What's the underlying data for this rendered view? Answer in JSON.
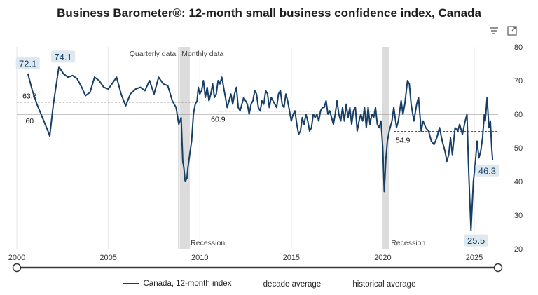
{
  "toolbar": {
    "filter_icon": "filter-icon",
    "expand_icon": "expand-icon"
  },
  "colors": {
    "series": "#173f66",
    "grid": "#e6e6e6",
    "recession": "#dcdcdc",
    "callout_bg": "#dde8ef"
  },
  "chart_data": {
    "type": "line",
    "title": "Business Barometer®: 12-month small business confidence index, Canada",
    "xlabel": "",
    "ylabel": "",
    "xlim": [
      2000,
      2026.3
    ],
    "ylim": [
      20,
      80
    ],
    "x_ticks": [
      "2000",
      "2005",
      "2010",
      "2015",
      "2020",
      "2025"
    ],
    "y_ticks": [
      "20",
      "30",
      "40",
      "50",
      "60",
      "70",
      "80"
    ],
    "grid": true,
    "legend_position": "bottom",
    "annotations": {
      "quarterly": "Quarterly data",
      "monthly": "Monthly data",
      "recession": "Recession"
    },
    "recessions": [
      [
        2008.9,
        2009.45
      ],
      [
        2019.95,
        2020.35
      ]
    ],
    "historical_average": {
      "value": 60,
      "label": "60"
    },
    "decade_averages": [
      {
        "label": "63.6",
        "value": 63.6,
        "from": 2000,
        "to": 2010
      },
      {
        "label": "60.9",
        "value": 60.9,
        "from": 2011,
        "to": 2020
      },
      {
        "label": "54.9",
        "value": 54.9,
        "from": 2020.6,
        "to": 2026.3
      }
    ],
    "callouts": [
      {
        "label": "72.1",
        "x": 2000.6,
        "y": 72.1
      },
      {
        "label": "74.1",
        "x": 2002.3,
        "y": 74.1
      },
      {
        "label": "46.3",
        "x": 2026.2,
        "y": 46.3
      },
      {
        "label": "25.5",
        "x": 2025.1,
        "y": 25.5
      }
    ],
    "legend": [
      "Canada, 12-month index",
      "decade average",
      "historical average"
    ],
    "series": [
      {
        "name": "Canada, 12-month index",
        "points": [
          [
            2000.6,
            72.1
          ],
          [
            2000.85,
            67
          ],
          [
            2001.1,
            63
          ],
          [
            2001.4,
            59
          ],
          [
            2001.7,
            55
          ],
          [
            2001.8,
            53.5
          ],
          [
            2002.0,
            63
          ],
          [
            2002.3,
            74.1
          ],
          [
            2002.55,
            72
          ],
          [
            2002.8,
            71
          ],
          [
            2003.05,
            71.5
          ],
          [
            2003.3,
            70.5
          ],
          [
            2003.55,
            68
          ],
          [
            2003.75,
            65.5
          ],
          [
            2004.0,
            66.5
          ],
          [
            2004.25,
            71
          ],
          [
            2004.5,
            70
          ],
          [
            2004.75,
            68
          ],
          [
            2005.0,
            67.5
          ],
          [
            2005.2,
            69
          ],
          [
            2005.45,
            71
          ],
          [
            2005.7,
            66
          ],
          [
            2005.95,
            62.5
          ],
          [
            2006.2,
            66
          ],
          [
            2006.5,
            67.5
          ],
          [
            2006.75,
            68
          ],
          [
            2007.0,
            67
          ],
          [
            2007.25,
            70
          ],
          [
            2007.5,
            66
          ],
          [
            2007.75,
            71
          ],
          [
            2008.0,
            69
          ],
          [
            2008.25,
            68.5
          ],
          [
            2008.5,
            64
          ],
          [
            2008.7,
            62
          ],
          [
            2008.85,
            57
          ],
          [
            2008.98,
            59
          ],
          [
            2009.07,
            46
          ],
          [
            2009.13,
            44
          ],
          [
            2009.2,
            40
          ],
          [
            2009.3,
            41
          ],
          [
            2009.35,
            44
          ],
          [
            2009.45,
            48
          ],
          [
            2009.55,
            52
          ],
          [
            2009.65,
            60
          ],
          [
            2009.75,
            63
          ],
          [
            2009.85,
            64
          ],
          [
            2009.92,
            68
          ],
          [
            2010.0,
            66
          ],
          [
            2010.1,
            67
          ],
          [
            2010.2,
            70
          ],
          [
            2010.3,
            65
          ],
          [
            2010.4,
            68
          ],
          [
            2010.5,
            64
          ],
          [
            2010.6,
            66
          ],
          [
            2010.7,
            69
          ],
          [
            2010.8,
            65
          ],
          [
            2010.9,
            66
          ],
          [
            2011.0,
            70
          ],
          [
            2011.1,
            69
          ],
          [
            2011.2,
            71
          ],
          [
            2011.3,
            68
          ],
          [
            2011.4,
            65
          ],
          [
            2011.5,
            62
          ],
          [
            2011.6,
            64
          ],
          [
            2011.7,
            66
          ],
          [
            2011.8,
            63
          ],
          [
            2011.9,
            66
          ],
          [
            2012.0,
            68
          ],
          [
            2012.1,
            62
          ],
          [
            2012.2,
            61
          ],
          [
            2012.3,
            63
          ],
          [
            2012.4,
            65
          ],
          [
            2012.5,
            64
          ],
          [
            2012.6,
            63
          ],
          [
            2012.7,
            60
          ],
          [
            2012.8,
            63
          ],
          [
            2012.9,
            64
          ],
          [
            2013.0,
            67
          ],
          [
            2013.1,
            66
          ],
          [
            2013.2,
            62
          ],
          [
            2013.3,
            61
          ],
          [
            2013.4,
            64
          ],
          [
            2013.5,
            63
          ],
          [
            2013.6,
            67
          ],
          [
            2013.7,
            66
          ],
          [
            2013.8,
            62
          ],
          [
            2013.9,
            65
          ],
          [
            2014.0,
            64
          ],
          [
            2014.1,
            63
          ],
          [
            2014.2,
            62
          ],
          [
            2014.3,
            66
          ],
          [
            2014.4,
            67
          ],
          [
            2014.5,
            63
          ],
          [
            2014.6,
            62
          ],
          [
            2014.7,
            66
          ],
          [
            2014.8,
            64
          ],
          [
            2014.9,
            61
          ],
          [
            2015.0,
            58
          ],
          [
            2015.1,
            60
          ],
          [
            2015.2,
            61
          ],
          [
            2015.3,
            57
          ],
          [
            2015.4,
            54
          ],
          [
            2015.5,
            55
          ],
          [
            2015.6,
            59
          ],
          [
            2015.7,
            57
          ],
          [
            2015.8,
            60
          ],
          [
            2015.9,
            58
          ],
          [
            2016.0,
            55
          ],
          [
            2016.1,
            56
          ],
          [
            2016.2,
            60
          ],
          [
            2016.3,
            59
          ],
          [
            2016.4,
            60
          ],
          [
            2016.5,
            58
          ],
          [
            2016.6,
            61
          ],
          [
            2016.7,
            62
          ],
          [
            2016.8,
            62
          ],
          [
            2016.9,
            64
          ],
          [
            2017.0,
            60
          ],
          [
            2017.1,
            61
          ],
          [
            2017.2,
            59
          ],
          [
            2017.3,
            57
          ],
          [
            2017.4,
            60
          ],
          [
            2017.5,
            64
          ],
          [
            2017.6,
            60
          ],
          [
            2017.7,
            58
          ],
          [
            2017.8,
            62
          ],
          [
            2017.9,
            58
          ],
          [
            2018.0,
            63
          ],
          [
            2018.1,
            59
          ],
          [
            2018.2,
            62
          ],
          [
            2018.3,
            57
          ],
          [
            2018.4,
            61
          ],
          [
            2018.5,
            62
          ],
          [
            2018.6,
            55
          ],
          [
            2018.7,
            58
          ],
          [
            2018.8,
            60
          ],
          [
            2018.9,
            58
          ],
          [
            2019.0,
            62
          ],
          [
            2019.1,
            56
          ],
          [
            2019.2,
            62
          ],
          [
            2019.3,
            57
          ],
          [
            2019.4,
            60
          ],
          [
            2019.5,
            59
          ],
          [
            2019.6,
            62
          ],
          [
            2019.7,
            57
          ],
          [
            2019.8,
            56
          ],
          [
            2019.9,
            58
          ],
          [
            2020.0,
            50
          ],
          [
            2020.08,
            37
          ],
          [
            2020.17,
            47
          ],
          [
            2020.25,
            52
          ],
          [
            2020.35,
            55
          ],
          [
            2020.5,
            58
          ],
          [
            2020.6,
            62
          ],
          [
            2020.75,
            56
          ],
          [
            2020.85,
            58
          ],
          [
            2021.0,
            64
          ],
          [
            2021.1,
            60
          ],
          [
            2021.2,
            63
          ],
          [
            2021.35,
            70
          ],
          [
            2021.45,
            69
          ],
          [
            2021.55,
            63
          ],
          [
            2021.7,
            58
          ],
          [
            2021.85,
            63
          ],
          [
            2021.95,
            65
          ],
          [
            2022.1,
            55
          ],
          [
            2022.2,
            58
          ],
          [
            2022.35,
            56
          ],
          [
            2022.5,
            55
          ],
          [
            2022.65,
            52
          ],
          [
            2022.8,
            51
          ],
          [
            2022.95,
            53
          ],
          [
            2023.1,
            56
          ],
          [
            2023.25,
            52
          ],
          [
            2023.4,
            49
          ],
          [
            2023.5,
            46
          ],
          [
            2023.6,
            48
          ],
          [
            2023.7,
            53
          ],
          [
            2023.8,
            48
          ],
          [
            2023.95,
            56
          ],
          [
            2024.1,
            55
          ],
          [
            2024.2,
            57
          ],
          [
            2024.35,
            54
          ],
          [
            2024.5,
            58
          ],
          [
            2024.6,
            60
          ],
          [
            2024.68,
            45
          ],
          [
            2024.75,
            35
          ],
          [
            2024.82,
            25.5
          ],
          [
            2024.95,
            40
          ],
          [
            2025.05,
            45
          ],
          [
            2025.15,
            52
          ],
          [
            2025.25,
            47
          ],
          [
            2025.35,
            49
          ],
          [
            2025.45,
            53
          ],
          [
            2025.55,
            60
          ],
          [
            2025.6,
            58
          ],
          [
            2025.7,
            65
          ],
          [
            2025.8,
            56
          ],
          [
            2025.88,
            58
          ],
          [
            2025.95,
            50
          ],
          [
            2026.0,
            46.3
          ]
        ]
      }
    ]
  }
}
